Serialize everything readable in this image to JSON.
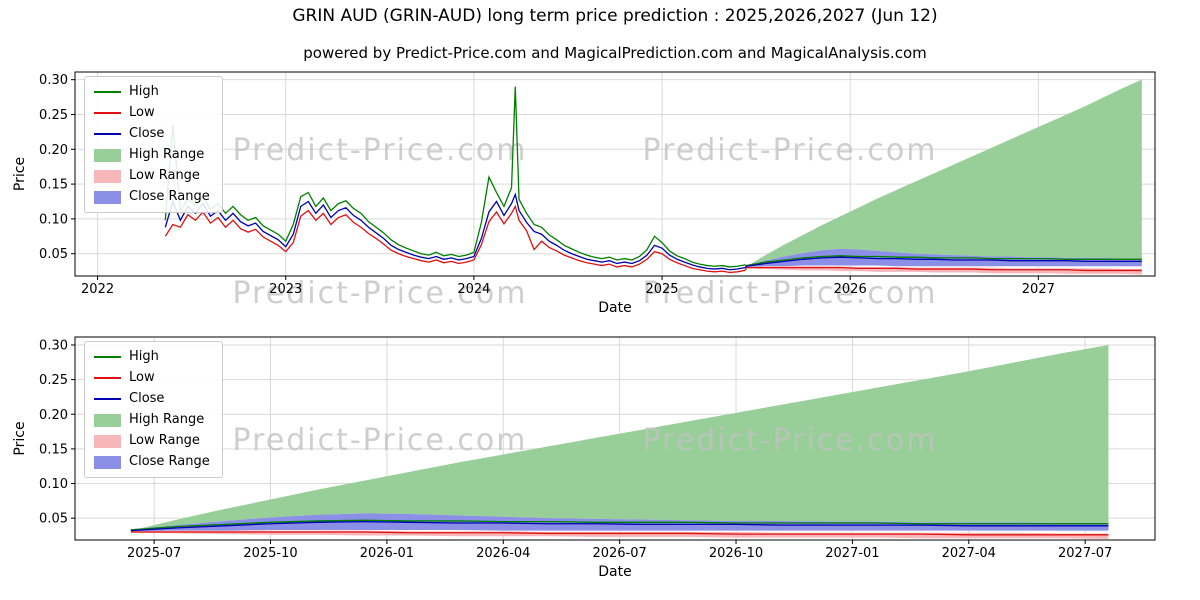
{
  "title": "GRIN AUD (GRIN-AUD) long term price prediction : 2025,2026,2027 (Jun 12)",
  "subtitle": "powered by Predict-Price.com and MagicalPrediction.com and MagicalAnalysis.com",
  "watermark": "Predict-Price.com",
  "colors": {
    "high": "#007f00",
    "low": "#dd1111",
    "close": "#0000b3",
    "high_range": "#98cf98",
    "low_range": "#f7b6ba",
    "close_range": "#8b90e6",
    "grid": "#d9d9d9",
    "watermark": "#c2c2c2",
    "axis": "#000000"
  },
  "legend": [
    {
      "label": "High",
      "type": "line",
      "color_key": "high"
    },
    {
      "label": "Low",
      "type": "line",
      "color_key": "low"
    },
    {
      "label": "Close",
      "type": "line",
      "color_key": "close"
    },
    {
      "label": "High Range",
      "type": "patch",
      "color_key": "high_range"
    },
    {
      "label": "Low Range",
      "type": "patch",
      "color_key": "low_range"
    },
    {
      "label": "Close Range",
      "type": "patch",
      "color_key": "close_range"
    }
  ],
  "chart_data": [
    {
      "name": "history_and_forecast",
      "type": "line",
      "xlabel": "Date",
      "ylabel": "Price",
      "xlim": [
        2021.88,
        2027.62
      ],
      "ylim": [
        0.018,
        0.311
      ],
      "grid": true,
      "legend_position": "upper left",
      "xticks": {
        "values": [
          2022,
          2023,
          2024,
          2025,
          2026,
          2027
        ],
        "labels": [
          "2022",
          "2023",
          "2024",
          "2025",
          "2026",
          "2027"
        ]
      },
      "yticks": {
        "values": [
          0.05,
          0.1,
          0.15,
          0.2,
          0.25,
          0.3
        ],
        "labels": [
          "0.05",
          "0.10",
          "0.15",
          "0.20",
          "0.25",
          "0.30"
        ]
      },
      "historical": {
        "x": [
          2022.36,
          2022.4,
          2022.44,
          2022.48,
          2022.52,
          2022.56,
          2022.6,
          2022.64,
          2022.68,
          2022.72,
          2022.76,
          2022.8,
          2022.84,
          2022.88,
          2022.92,
          2022.96,
          2023.0,
          2023.04,
          2023.08,
          2023.12,
          2023.16,
          2023.2,
          2023.24,
          2023.28,
          2023.32,
          2023.36,
          2023.4,
          2023.44,
          2023.48,
          2023.52,
          2023.56,
          2023.6,
          2023.64,
          2023.68,
          2023.72,
          2023.76,
          2023.8,
          2023.84,
          2023.88,
          2023.92,
          2023.96,
          2024.0,
          2024.04,
          2024.08,
          2024.12,
          2024.16,
          2024.2,
          2024.22,
          2024.24,
          2024.28,
          2024.32,
          2024.36,
          2024.4,
          2024.44,
          2024.48,
          2024.52,
          2024.56,
          2024.6,
          2024.64,
          2024.68,
          2024.72,
          2024.76,
          2024.8,
          2024.84,
          2024.88,
          2024.92,
          2024.96,
          2025.0,
          2025.04,
          2025.08,
          2025.12,
          2025.16,
          2025.2,
          2025.24,
          2025.28,
          2025.32,
          2025.36,
          2025.4,
          2025.44
        ],
        "high": [
          0.098,
          0.235,
          0.112,
          0.128,
          0.12,
          0.132,
          0.114,
          0.122,
          0.108,
          0.118,
          0.106,
          0.098,
          0.102,
          0.09,
          0.084,
          0.078,
          0.068,
          0.092,
          0.132,
          0.138,
          0.118,
          0.13,
          0.112,
          0.122,
          0.126,
          0.115,
          0.108,
          0.096,
          0.088,
          0.08,
          0.07,
          0.063,
          0.058,
          0.054,
          0.05,
          0.048,
          0.052,
          0.047,
          0.049,
          0.046,
          0.048,
          0.052,
          0.095,
          0.16,
          0.138,
          0.118,
          0.145,
          0.29,
          0.128,
          0.108,
          0.092,
          0.088,
          0.077,
          0.07,
          0.062,
          0.057,
          0.052,
          0.048,
          0.045,
          0.043,
          0.045,
          0.041,
          0.043,
          0.041,
          0.046,
          0.056,
          0.075,
          0.066,
          0.054,
          0.047,
          0.043,
          0.038,
          0.035,
          0.033,
          0.032,
          0.033,
          0.031,
          0.032,
          0.034
        ],
        "low": [
          0.075,
          0.092,
          0.088,
          0.106,
          0.098,
          0.11,
          0.094,
          0.102,
          0.088,
          0.098,
          0.086,
          0.081,
          0.085,
          0.074,
          0.068,
          0.062,
          0.053,
          0.066,
          0.104,
          0.112,
          0.098,
          0.108,
          0.092,
          0.102,
          0.106,
          0.095,
          0.088,
          0.079,
          0.072,
          0.064,
          0.055,
          0.05,
          0.046,
          0.043,
          0.04,
          0.038,
          0.041,
          0.037,
          0.039,
          0.036,
          0.038,
          0.041,
          0.063,
          0.096,
          0.11,
          0.093,
          0.108,
          0.118,
          0.098,
          0.083,
          0.056,
          0.068,
          0.059,
          0.054,
          0.048,
          0.044,
          0.04,
          0.037,
          0.035,
          0.033,
          0.035,
          0.031,
          0.033,
          0.031,
          0.035,
          0.042,
          0.053,
          0.05,
          0.042,
          0.037,
          0.033,
          0.029,
          0.027,
          0.025,
          0.024,
          0.025,
          0.023,
          0.024,
          0.026
        ],
        "close": [
          0.088,
          0.125,
          0.098,
          0.118,
          0.108,
          0.122,
          0.104,
          0.112,
          0.098,
          0.108,
          0.096,
          0.09,
          0.094,
          0.082,
          0.076,
          0.07,
          0.06,
          0.078,
          0.118,
          0.125,
          0.108,
          0.12,
          0.102,
          0.112,
          0.116,
          0.105,
          0.098,
          0.088,
          0.08,
          0.072,
          0.062,
          0.056,
          0.052,
          0.048,
          0.045,
          0.043,
          0.046,
          0.042,
          0.044,
          0.041,
          0.043,
          0.046,
          0.072,
          0.11,
          0.125,
          0.105,
          0.122,
          0.135,
          0.112,
          0.095,
          0.082,
          0.078,
          0.068,
          0.062,
          0.055,
          0.05,
          0.046,
          0.042,
          0.04,
          0.038,
          0.04,
          0.036,
          0.038,
          0.036,
          0.04,
          0.048,
          0.062,
          0.058,
          0.048,
          0.042,
          0.038,
          0.034,
          0.031,
          0.029,
          0.028,
          0.029,
          0.027,
          0.028,
          0.03
        ],
        "uses_prediction": true
      }
    },
    {
      "name": "forecast_detail",
      "type": "line",
      "xlabel": "Date",
      "ylabel": "Price",
      "xlim": [
        2025.33,
        2027.65
      ],
      "ylim": [
        0.0185,
        0.3115
      ],
      "grid": true,
      "legend_position": "upper left",
      "xticks": {
        "values": [
          2025.5,
          2025.75,
          2026.0,
          2026.25,
          2026.5,
          2026.75,
          2027.0,
          2027.25,
          2027.5
        ],
        "labels": [
          "2025-07",
          "2025-10",
          "2026-01",
          "2026-04",
          "2026-07",
          "2026-10",
          "2027-01",
          "2027-04",
          "2027-07"
        ]
      },
      "yticks": {
        "values": [
          0.05,
          0.1,
          0.15,
          0.2,
          0.25,
          0.3
        ],
        "labels": [
          "0.05",
          "0.10",
          "0.15",
          "0.20",
          "0.25",
          "0.30"
        ]
      },
      "uses_prediction": true
    }
  ],
  "prediction": {
    "x": [
      2025.45,
      2025.55,
      2025.65,
      2025.75,
      2025.85,
      2025.95,
      2026.05,
      2026.15,
      2026.25,
      2026.35,
      2026.45,
      2026.55,
      2026.65,
      2026.75,
      2026.85,
      2026.95,
      2027.05,
      2027.15,
      2027.25,
      2027.35,
      2027.45,
      2027.55
    ],
    "high_line": [
      0.033,
      0.038,
      0.041,
      0.044,
      0.046,
      0.047,
      0.046,
      0.046,
      0.045,
      0.045,
      0.044,
      0.044,
      0.044,
      0.043,
      0.043,
      0.043,
      0.043,
      0.042,
      0.042,
      0.042,
      0.042,
      0.042
    ],
    "low_line": [
      0.03,
      0.03,
      0.03,
      0.03,
      0.03,
      0.03,
      0.029,
      0.029,
      0.029,
      0.028,
      0.028,
      0.028,
      0.028,
      0.027,
      0.027,
      0.027,
      0.027,
      0.027,
      0.026,
      0.026,
      0.026,
      0.026
    ],
    "close_line": [
      0.032,
      0.036,
      0.039,
      0.042,
      0.044,
      0.045,
      0.044,
      0.043,
      0.043,
      0.042,
      0.042,
      0.041,
      0.041,
      0.041,
      0.04,
      0.04,
      0.04,
      0.04,
      0.039,
      0.039,
      0.039,
      0.039
    ],
    "high_range_upper": [
      0.032,
      0.048,
      0.063,
      0.077,
      0.091,
      0.104,
      0.117,
      0.13,
      0.142,
      0.154,
      0.166,
      0.178,
      0.19,
      0.202,
      0.214,
      0.226,
      0.238,
      0.25,
      0.262,
      0.275,
      0.288,
      0.3
    ],
    "close_range_upper": [
      0.034,
      0.04,
      0.046,
      0.051,
      0.055,
      0.057,
      0.056,
      0.054,
      0.052,
      0.05,
      0.049,
      0.048,
      0.047,
      0.046,
      0.046,
      0.045,
      0.045,
      0.044,
      0.044,
      0.044,
      0.043,
      0.043
    ],
    "close_range_lower": [
      0.031,
      0.032,
      0.032,
      0.033,
      0.033,
      0.033,
      0.033,
      0.033,
      0.032,
      0.032,
      0.032,
      0.032,
      0.032,
      0.032,
      0.032,
      0.032,
      0.032,
      0.032,
      0.032,
      0.032,
      0.032,
      0.032
    ],
    "low_range_upper": [
      0.031,
      0.032,
      0.032,
      0.032,
      0.032,
      0.032,
      0.031,
      0.031,
      0.031,
      0.03,
      0.03,
      0.03,
      0.03,
      0.03,
      0.029,
      0.029,
      0.029,
      0.029,
      0.029,
      0.029,
      0.028,
      0.028
    ],
    "low_range_lower": [
      0.029,
      0.028,
      0.027,
      0.026,
      0.026,
      0.025,
      0.025,
      0.024,
      0.024,
      0.024,
      0.023,
      0.023,
      0.023,
      0.022,
      0.022,
      0.022,
      0.022,
      0.021,
      0.021,
      0.021,
      0.021,
      0.02
    ]
  }
}
